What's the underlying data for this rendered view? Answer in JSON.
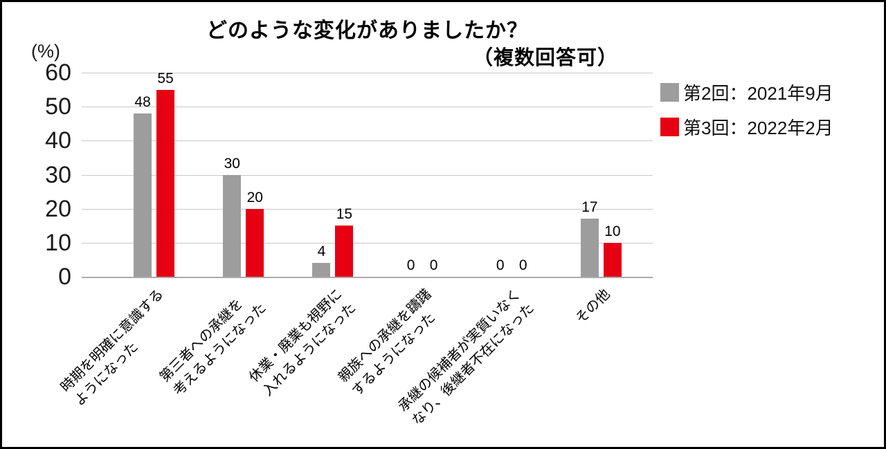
{
  "chart_data": {
    "type": "bar",
    "title": "どのような変化がありましたか？",
    "subtitle": "（複数回答可）",
    "ylabel": "(%)",
    "ylim": [
      0,
      60
    ],
    "yticks": [
      60,
      50,
      40,
      30,
      20,
      10,
      0
    ],
    "grid": true,
    "legend_position": "right-top",
    "categories": [
      "時期を明確に意識する\nようになった",
      "第三者への承継を\n考えるようになった",
      "休業・廃業も視野に\n入れるようになった",
      "親族への承継を躊躇\nするようになった",
      "承継の候補者が実質いなく\nなり、後継者不在になった",
      "その他"
    ],
    "series": [
      {
        "name": "第2回：2021年9月",
        "color": "#9d9d9d",
        "values": [
          48,
          30,
          4,
          0,
          0,
          17
        ]
      },
      {
        "name": "第3回：2022年2月",
        "color": "#e60012",
        "values": [
          55,
          20,
          15,
          0,
          0,
          10
        ]
      }
    ]
  },
  "colors": {
    "gridline": "#c9c9c9",
    "baseline": "#ababab",
    "frame_border": "#000000",
    "background": "#ffffff"
  }
}
